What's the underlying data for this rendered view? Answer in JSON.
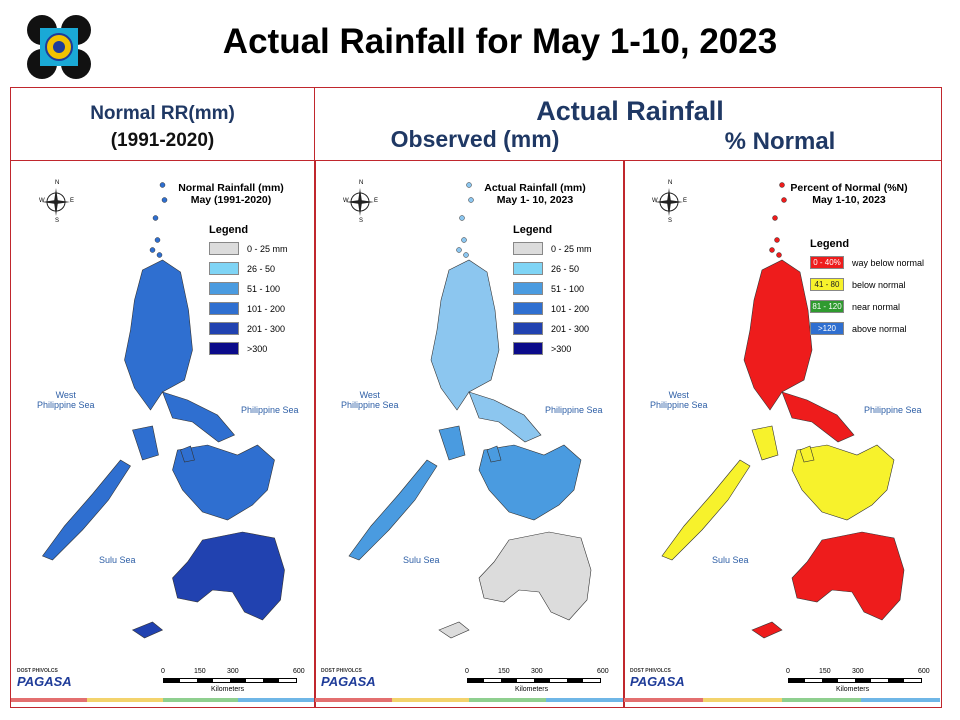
{
  "title": "Actual Rainfall for May 1-10, 2023",
  "headers": {
    "normal_line1": "Normal RR(mm)",
    "normal_line2": "(1991-2020)",
    "actual": "Actual Rainfall",
    "observed": "Observed (mm)",
    "percent": "% Normal"
  },
  "maps": [
    {
      "title_line1": "Normal Rainfall (mm)",
      "title_line2": "May (1991-2020)",
      "legend_title": "Legend",
      "legend": [
        {
          "label": "0 - 25 mm",
          "color": "#dcdcdc"
        },
        {
          "label": "26 - 50",
          "color": "#7fd4f5"
        },
        {
          "label": "51 - 100",
          "color": "#4a9be0"
        },
        {
          "label": "101 - 200",
          "color": "#2f6fd0"
        },
        {
          "label": "201 - 300",
          "color": "#2142b0"
        },
        {
          "label": ">300",
          "color": "#0b0b8a"
        }
      ],
      "seas": {
        "west_line1": "West",
        "west_line2": "Philippine Sea",
        "east": "Philippine Sea",
        "sulu": "Sulu Sea"
      },
      "fill": {
        "north": "#2f6fd0",
        "center": "#2f6fd0",
        "south": "#2142b0"
      }
    },
    {
      "title_line1": "Actual Rainfall (mm)",
      "title_line2": "May 1- 10, 2023",
      "legend_title": "Legend",
      "legend": [
        {
          "label": "0 - 25 mm",
          "color": "#dcdcdc"
        },
        {
          "label": "26 - 50",
          "color": "#7fd4f5"
        },
        {
          "label": "51 - 100",
          "color": "#4a9be0"
        },
        {
          "label": "101 - 200",
          "color": "#2f6fd0"
        },
        {
          "label": "201 - 300",
          "color": "#2142b0"
        },
        {
          "label": ">300",
          "color": "#0b0b8a"
        }
      ],
      "seas": {
        "west_line1": "West",
        "west_line2": "Philippine Sea",
        "east": "Philippine Sea",
        "sulu": "Sulu Sea"
      },
      "fill": {
        "north": "#8cc6ef",
        "center": "#4a9be0",
        "south": "#dcdcdc"
      }
    },
    {
      "title_line1": "Percent of Normal (%N)",
      "title_line2": "May 1-10, 2023",
      "legend_title": "Legend",
      "legend": [
        {
          "swatch": "0 - 40%",
          "label": "way below normal",
          "color": "#ee1c1c"
        },
        {
          "swatch": "41 - 80",
          "label": "below normal",
          "color": "#f7f22c"
        },
        {
          "swatch": "81 - 120",
          "label": "near normal",
          "color": "#2f9a2f"
        },
        {
          "swatch": ">120",
          "label": "above normal",
          "color": "#2f6fd0"
        }
      ],
      "seas": {
        "west_line1": "West",
        "west_line2": "Philippine Sea",
        "east": "Philippine Sea",
        "sulu": "Sulu Sea"
      },
      "fill": {
        "north": "#ee1c1c",
        "center": "#f7f22c",
        "south": "#ee1c1c"
      }
    }
  ],
  "scale": {
    "ticks": [
      "0",
      "150",
      "300",
      "600"
    ],
    "unit": "Kilometers"
  },
  "compass": {
    "n": "N",
    "s": "S",
    "e": "E",
    "w": "W"
  },
  "brand": {
    "name": "PAGASA",
    "tag1": "DOST",
    "tag2": "PHIVOLCS"
  }
}
